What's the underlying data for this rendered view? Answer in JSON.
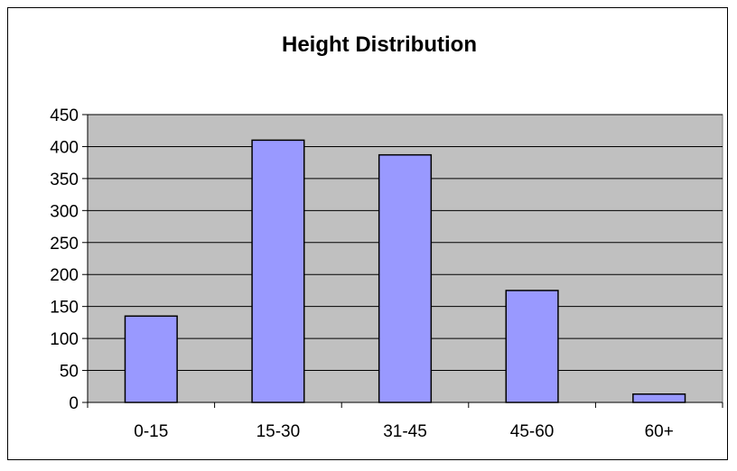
{
  "chart_data": {
    "type": "bar",
    "title": "Height Distribution",
    "xlabel": "",
    "ylabel": "",
    "categories": [
      "0-15",
      "15-30",
      "31-45",
      "45-60",
      "60+"
    ],
    "values": [
      135,
      410,
      387,
      175,
      13
    ],
    "ylim": [
      0,
      450
    ],
    "y_ticks": [
      "0",
      "50",
      "100",
      "150",
      "200",
      "250",
      "300",
      "350",
      "400",
      "450"
    ],
    "grid": true,
    "legend": "none",
    "colors": {
      "bar_fill": "#9999ff",
      "bar_stroke": "#000000",
      "plot_background": "#c0c0c0",
      "gridline": "#000000"
    }
  }
}
